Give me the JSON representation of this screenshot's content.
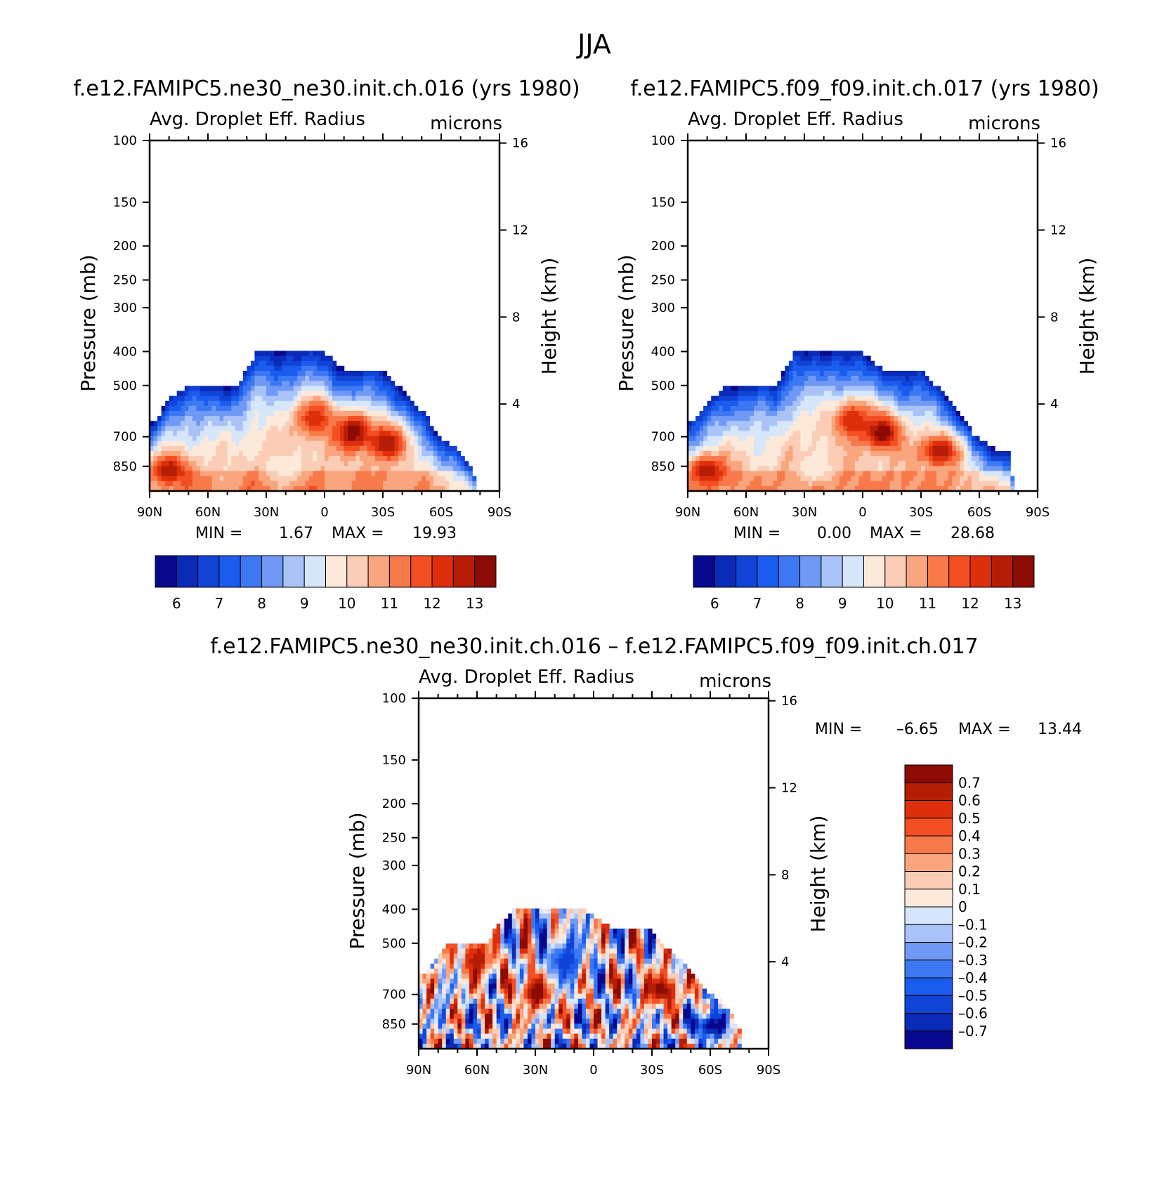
{
  "figure": {
    "title": "JJA"
  },
  "panels": [
    {
      "id": "p1",
      "title": "f.e12.FAMIPC5.ne30_ne30.init.ch.016 (yrs 1980)",
      "left_string": "Avg. Droplet Eff. Radius",
      "right_string": "microns",
      "min_label": "MIN =",
      "min_value": "1.67",
      "max_label": "MAX =",
      "max_value": "19.93"
    },
    {
      "id": "p2",
      "title": "f.e12.FAMIPC5.f09_f09.init.ch.017 (yrs 1980)",
      "left_string": "Avg. Droplet Eff. Radius",
      "right_string": "microns",
      "min_label": "MIN =",
      "min_value": "0.00",
      "max_label": "MAX =",
      "max_value": "28.68"
    },
    {
      "id": "p3",
      "title": "f.e12.FAMIPC5.ne30_ne30.init.ch.016 – f.e12.FAMIPC5.f09_f09.init.ch.017",
      "left_string": "Avg. Droplet Eff. Radius",
      "right_string": "microns",
      "min_label": "MIN =",
      "min_value": "–6.65",
      "max_label": "MAX =",
      "max_value": "13.44"
    }
  ],
  "chart_data": [
    {
      "type": "heatmap",
      "title": "f.e12.FAMIPC5.ne30_ne30.init.ch.016 (yrs 1980)",
      "xlabel": "",
      "ylabel": "Pressure (mb)",
      "ylabel_right": "Height (km)",
      "x_ticks": [
        "90N",
        "60N",
        "30N",
        "0",
        "30S",
        "60S",
        "90S"
      ],
      "x_range": [
        90,
        -90
      ],
      "y_ticks": [
        100,
        150,
        200,
        250,
        300,
        400,
        500,
        700,
        850
      ],
      "y_range_mb": [
        1000,
        100
      ],
      "y_scale": "log",
      "y_right_ticks": [
        16,
        12,
        8,
        4
      ],
      "colorbar": {
        "orientation": "horizontal",
        "labels": [
          "6",
          "7",
          "8",
          "9",
          "10",
          "11",
          "12",
          "13"
        ],
        "levels": [
          5.5,
          6,
          6.5,
          7,
          7.5,
          8,
          8.5,
          9,
          9.5,
          10,
          10.5,
          11,
          11.5,
          12,
          12.5,
          13,
          13.5
        ]
      },
      "min": 1.67,
      "max": 19.93,
      "cloud_top_mb": [
        [
          88,
          640
        ],
        [
          80,
          540
        ],
        [
          70,
          500
        ],
        [
          45,
          500
        ],
        [
          35,
          400
        ],
        [
          20,
          400
        ],
        [
          12,
          400
        ],
        [
          5,
          400
        ],
        [
          0,
          400
        ],
        [
          -10,
          450
        ],
        [
          -30,
          450
        ],
        [
          -38,
          500
        ],
        [
          -45,
          560
        ],
        [
          -52,
          600
        ],
        [
          -58,
          700
        ],
        [
          -68,
          750
        ],
        [
          -72,
          800
        ],
        [
          -75,
          850
        ],
        [
          -78,
          920
        ]
      ],
      "features": [
        {
          "lat": -15,
          "p": 680,
          "value": 13.5
        },
        {
          "lat": 5,
          "p": 620,
          "value": 12.5
        },
        {
          "lat": -32,
          "p": 730,
          "value": 13.0
        },
        {
          "lat": 80,
          "p": 870,
          "value": 13.0
        },
        {
          "lat": 20,
          "p": 860,
          "value": 9.6
        }
      ]
    },
    {
      "type": "heatmap",
      "title": "f.e12.FAMIPC5.f09_f09.init.ch.017 (yrs 1980)",
      "xlabel": "",
      "ylabel": "Pressure (mb)",
      "ylabel_right": "Height (km)",
      "x_ticks": [
        "90N",
        "60N",
        "30N",
        "0",
        "30S",
        "60S",
        "90S"
      ],
      "x_range": [
        90,
        -90
      ],
      "y_ticks": [
        100,
        150,
        200,
        250,
        300,
        400,
        500,
        700,
        850
      ],
      "y_range_mb": [
        1000,
        100
      ],
      "y_scale": "log",
      "y_right_ticks": [
        16,
        12,
        8,
        4
      ],
      "colorbar": {
        "orientation": "horizontal",
        "labels": [
          "6",
          "7",
          "8",
          "9",
          "10",
          "11",
          "12",
          "13"
        ],
        "levels": [
          5.5,
          6,
          6.5,
          7,
          7.5,
          8,
          8.5,
          9,
          9.5,
          10,
          10.5,
          11,
          11.5,
          12,
          12.5,
          13,
          13.5
        ]
      },
      "min": 0.0,
      "max": 28.68,
      "cloud_top_mb": [
        [
          88,
          640
        ],
        [
          80,
          560
        ],
        [
          70,
          500
        ],
        [
          45,
          500
        ],
        [
          35,
          400
        ],
        [
          20,
          400
        ],
        [
          10,
          400
        ],
        [
          0,
          400
        ],
        [
          -10,
          450
        ],
        [
          -30,
          450
        ],
        [
          -38,
          500
        ],
        [
          -45,
          560
        ],
        [
          -52,
          620
        ],
        [
          -58,
          700
        ],
        [
          -68,
          760
        ],
        [
          -75,
          780
        ],
        [
          -78,
          950
        ]
      ],
      "features": [
        {
          "lat": -10,
          "p": 680,
          "value": 13.5
        },
        {
          "lat": 5,
          "p": 630,
          "value": 12.5
        },
        {
          "lat": -40,
          "p": 770,
          "value": 13.0
        },
        {
          "lat": 80,
          "p": 870,
          "value": 13.0
        },
        {
          "lat": 25,
          "p": 870,
          "value": 9.6
        }
      ]
    },
    {
      "type": "heatmap",
      "title": "f.e12.FAMIPC5.ne30_ne30.init.ch.016 – f.e12.FAMIPC5.f09_f09.init.ch.017",
      "xlabel": "",
      "ylabel": "Pressure (mb)",
      "ylabel_right": "Height (km)",
      "x_ticks": [
        "90N",
        "60N",
        "30N",
        "0",
        "30S",
        "60S",
        "90S"
      ],
      "x_range": [
        90,
        -90
      ],
      "y_ticks": [
        100,
        150,
        200,
        250,
        300,
        400,
        500,
        700,
        850
      ],
      "y_range_mb": [
        1000,
        100
      ],
      "y_scale": "log",
      "y_right_ticks": [
        16,
        12,
        8,
        4
      ],
      "colorbar": {
        "orientation": "vertical",
        "labels": [
          "0.7",
          "0.6",
          "0.5",
          "0.4",
          "0.3",
          "0.2",
          "0.1",
          "0",
          "–0.1",
          "–0.2",
          "–0.3",
          "–0.4",
          "–0.5",
          "–0.6",
          "–0.7"
        ],
        "levels": [
          -0.75,
          -0.7,
          -0.6,
          -0.5,
          -0.4,
          -0.3,
          -0.2,
          -0.1,
          0,
          0.1,
          0.2,
          0.3,
          0.4,
          0.5,
          0.6,
          0.7,
          0.75
        ]
      },
      "min": -6.65,
      "max": 13.44,
      "cloud_top_mb": [
        [
          88,
          620
        ],
        [
          75,
          500
        ],
        [
          55,
          500
        ],
        [
          50,
          450
        ],
        [
          42,
          400
        ],
        [
          30,
          400
        ],
        [
          5,
          400
        ],
        [
          0,
          420
        ],
        [
          -10,
          450
        ],
        [
          -28,
          450
        ],
        [
          -35,
          500
        ],
        [
          -45,
          560
        ],
        [
          -52,
          620
        ],
        [
          -60,
          700
        ],
        [
          -68,
          750
        ],
        [
          -72,
          820
        ],
        [
          -76,
          900
        ]
      ],
      "features": [
        {
          "lat": 30,
          "p": 690,
          "value": 0.8
        },
        {
          "lat": -35,
          "p": 680,
          "value": 0.8
        },
        {
          "lat": 60,
          "p": 560,
          "value": 0.7
        },
        {
          "lat": 15,
          "p": 560,
          "value": -0.6
        },
        {
          "lat": -60,
          "p": 860,
          "value": -0.8
        }
      ]
    }
  ],
  "palette": {
    "bluered_16": [
      "#08088e",
      "#0a2bb8",
      "#1043d6",
      "#1a5cee",
      "#3c78f2",
      "#6f99f5",
      "#a9c2f8",
      "#d6e6fb",
      "#fde9da",
      "#fbcdb6",
      "#f9a57e",
      "#f8794a",
      "#f34f22",
      "#de2f0c",
      "#b61d06",
      "#8c0b05"
    ]
  }
}
